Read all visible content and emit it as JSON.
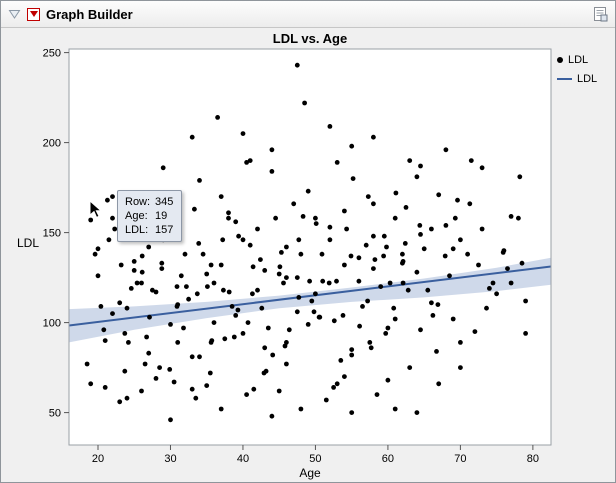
{
  "window": {
    "title": "Graph Builder"
  },
  "tooltip": {
    "rows": [
      {
        "label": "Row:",
        "value": "345"
      },
      {
        "label": "Age:",
        "value": "19"
      },
      {
        "label": "LDL:",
        "value": "157"
      }
    ]
  },
  "chart_data": {
    "type": "scatter",
    "title": "LDL vs. Age",
    "xlabel": "Age",
    "ylabel": "LDL",
    "xlim": [
      16,
      82.5
    ],
    "ylim": [
      32,
      252
    ],
    "x_ticks": [
      20,
      30,
      40,
      50,
      60,
      70,
      80
    ],
    "y_ticks": [
      50,
      100,
      150,
      200,
      250
    ],
    "grid": false,
    "legend_position": "right",
    "legend": [
      {
        "label": "LDL",
        "marker": "point",
        "color": "#000000"
      },
      {
        "label": "LDL",
        "marker": "line",
        "color": "#3a5f9e"
      }
    ],
    "series": [
      {
        "name": "LDL",
        "type": "scatter",
        "color": "#000000",
        "points": [
          [
            19,
            66
          ],
          [
            21,
            90
          ],
          [
            23,
            111
          ],
          [
            25,
            129
          ],
          [
            27,
            83
          ],
          [
            29,
            146
          ],
          [
            31,
            110
          ],
          [
            33,
            63
          ],
          [
            35,
            127
          ],
          [
            37,
            170
          ],
          [
            39,
            104
          ],
          [
            41,
            143
          ],
          [
            43,
            86
          ],
          [
            45,
            127
          ],
          [
            47,
            166
          ],
          [
            49,
            99
          ],
          [
            51,
            123
          ],
          [
            53,
            189
          ],
          [
            55,
            82
          ],
          [
            57,
            143
          ],
          [
            59,
            120
          ],
          [
            61,
            158
          ],
          [
            63,
            75
          ],
          [
            65,
            141
          ],
          [
            67,
            171
          ],
          [
            69,
            102
          ],
          [
            71,
            138
          ],
          [
            73,
            186
          ],
          [
            75,
            116
          ],
          [
            77,
            159
          ],
          [
            79,
            94
          ],
          [
            20,
            141
          ],
          [
            22,
            105
          ],
          [
            24,
            58
          ],
          [
            26,
            122
          ],
          [
            28,
            165
          ],
          [
            30,
            99
          ],
          [
            32,
            138
          ],
          [
            34,
            81
          ],
          [
            36,
            122
          ],
          [
            38,
            161
          ],
          [
            40,
            94
          ],
          [
            42,
            118
          ],
          [
            44,
            184
          ],
          [
            46,
            77
          ],
          [
            48,
            138
          ],
          [
            50,
            116
          ],
          [
            52,
            153
          ],
          [
            54,
            70
          ],
          [
            56,
            136
          ],
          [
            58,
            166
          ],
          [
            60,
            97
          ],
          [
            62,
            133
          ],
          [
            64,
            181
          ],
          [
            66,
            111
          ],
          [
            68,
            154
          ],
          [
            70,
            89
          ],
          [
            72,
            95
          ],
          [
            74,
            119
          ],
          [
            76,
            140
          ],
          [
            78,
            158
          ],
          [
            25,
            134
          ],
          [
            26.5,
            77
          ],
          [
            28,
            117
          ],
          [
            29.5,
            156
          ],
          [
            31,
            89
          ],
          [
            32.5,
            113
          ],
          [
            34,
            179
          ],
          [
            35.5,
            72
          ],
          [
            37,
            132
          ],
          [
            38.5,
            109
          ],
          [
            40,
            146
          ],
          [
            41.5,
            63
          ],
          [
            43,
            129
          ],
          [
            44.5,
            158
          ],
          [
            46,
            89
          ],
          [
            47.5,
            125
          ],
          [
            49,
            173
          ],
          [
            50.5,
            103
          ],
          [
            52,
            146
          ],
          [
            53.5,
            79
          ],
          [
            55,
            85
          ],
          [
            56.5,
            109
          ],
          [
            58,
            130
          ],
          [
            59.5,
            148
          ],
          [
            61,
            102
          ],
          [
            62.5,
            164
          ],
          [
            64,
            128
          ],
          [
            22,
            158
          ],
          [
            23.7,
            73
          ],
          [
            25.4,
            122
          ],
          [
            27.1,
            103
          ],
          [
            28.8,
            133
          ],
          [
            30.5,
            67
          ],
          [
            32.2,
            120
          ],
          [
            33.9,
            144
          ],
          [
            35.6,
            89
          ],
          [
            37.3,
            118
          ],
          [
            39,
            156
          ],
          [
            40.7,
            100
          ],
          [
            42.4,
            135
          ],
          [
            44.1,
            82
          ],
          [
            45.8,
            87
          ],
          [
            47.5,
            106
          ],
          [
            49.2,
            123
          ],
          [
            50.9,
            138
          ],
          [
            52.6,
            101
          ],
          [
            54.3,
            152
          ],
          [
            56,
            123
          ],
          [
            57.7,
            86
          ],
          [
            59.4,
            137
          ],
          [
            61.1,
            172
          ],
          [
            62.8,
            118
          ],
          [
            64.5,
            149
          ],
          [
            66.2,
            104
          ],
          [
            67.9,
            137
          ],
          [
            69.6,
            168
          ],
          [
            21.3,
            168
          ],
          [
            23.7,
            94
          ],
          [
            26.1,
            137
          ],
          [
            28.5,
            75
          ],
          [
            30.9,
            120
          ],
          [
            33.3,
            163
          ],
          [
            35.7,
            90
          ],
          [
            38.1,
            117
          ],
          [
            40.5,
            189
          ],
          [
            42.9,
            72
          ],
          [
            45.3,
            139
          ],
          [
            47.7,
            114
          ],
          [
            50.1,
            155
          ],
          [
            52.5,
            64
          ],
          [
            54.9,
            137
          ],
          [
            57.3,
            170
          ],
          [
            59.7,
            94
          ],
          [
            62.1,
            134
          ],
          [
            64.5,
            187
          ],
          [
            66.9,
            110
          ],
          [
            69.3,
            158
          ],
          [
            24.6,
            119
          ],
          [
            26.7,
            92
          ],
          [
            28.8,
            130
          ],
          [
            30.9,
            109
          ],
          [
            33,
            81
          ],
          [
            35.1,
            120
          ],
          [
            37.2,
            146
          ],
          [
            39.3,
            107
          ],
          [
            41.4,
            131
          ],
          [
            43.5,
            97
          ],
          [
            45.6,
            122
          ],
          [
            47.7,
            146
          ],
          [
            49.8,
            106
          ],
          [
            51.9,
            122
          ],
          [
            54,
            162
          ],
          [
            56.1,
            98
          ],
          [
            58.2,
            135
          ],
          [
            60.3,
            122
          ],
          [
            62.4,
            144
          ],
          [
            64.5,
            96
          ],
          [
            18.5,
            77
          ],
          [
            20.4,
            109
          ],
          [
            22.3,
            152
          ],
          [
            24.2,
            89
          ],
          [
            26.1,
            128
          ],
          [
            28,
            69
          ],
          [
            29.9,
            74
          ],
          [
            31.8,
            97
          ],
          [
            33.7,
            116
          ],
          [
            35.6,
            132
          ],
          [
            37.5,
            91
          ],
          [
            39.4,
            148
          ],
          [
            41.3,
            116
          ],
          [
            43.2,
            73
          ],
          [
            45.1,
            131
          ],
          [
            46,
            125
          ],
          [
            48.3,
            159
          ],
          [
            50.6,
            103
          ],
          [
            52.9,
            123
          ],
          [
            55.2,
            180
          ],
          [
            57.5,
            89
          ],
          [
            59.8,
            142
          ],
          [
            62.1,
            122
          ],
          [
            64.4,
            154
          ],
          [
            66.7,
            84
          ],
          [
            69,
            141
          ],
          [
            71.3,
            166
          ],
          [
            73.6,
            108
          ],
          [
            75.9,
            139
          ],
          [
            78.2,
            181
          ],
          [
            33,
            203
          ],
          [
            36.5,
            214
          ],
          [
            40,
            205
          ],
          [
            44,
            196
          ],
          [
            47.5,
            243
          ],
          [
            48.5,
            222
          ],
          [
            52,
            209
          ],
          [
            55,
            198
          ],
          [
            58,
            203
          ],
          [
            41,
            190
          ],
          [
            63,
            190
          ],
          [
            68,
            196
          ],
          [
            71.5,
            190
          ],
          [
            29,
            186
          ],
          [
            25,
            172
          ],
          [
            22,
            170
          ],
          [
            23,
            56
          ],
          [
            26,
            62
          ],
          [
            30,
            46
          ],
          [
            33.5,
            58
          ],
          [
            37,
            52
          ],
          [
            40.5,
            60
          ],
          [
            44,
            48
          ],
          [
            48,
            52
          ],
          [
            51.5,
            57
          ],
          [
            55,
            50
          ],
          [
            58.5,
            60
          ],
          [
            61,
            52
          ],
          [
            64,
            50
          ],
          [
            67,
            66
          ],
          [
            70,
            75
          ],
          [
            21,
            64
          ],
          [
            35,
            65
          ],
          [
            45,
            62
          ],
          [
            53,
            66
          ],
          [
            60,
            68
          ],
          [
            20,
            126
          ],
          [
            20.8,
            96
          ],
          [
            24,
            108
          ],
          [
            27.5,
            118
          ],
          [
            31.5,
            126
          ],
          [
            36,
            100
          ],
          [
            38.8,
            92
          ],
          [
            42.6,
            108
          ],
          [
            46.4,
            96
          ],
          [
            49.5,
            112
          ],
          [
            53.8,
            104
          ],
          [
            57.2,
            112
          ],
          [
            60.8,
            108
          ],
          [
            65.5,
            118
          ],
          [
            68.5,
            126
          ],
          [
            72.5,
            132
          ],
          [
            74.5,
            122
          ],
          [
            76.5,
            130
          ],
          [
            19,
            157
          ],
          [
            19.6,
            138
          ],
          [
            21.5,
            146
          ],
          [
            23.2,
            132
          ],
          [
            27,
            142
          ],
          [
            31,
            152
          ],
          [
            34.5,
            138
          ],
          [
            38,
            158
          ],
          [
            42,
            152
          ],
          [
            46,
            142
          ],
          [
            50,
            158
          ],
          [
            54,
            132
          ],
          [
            58,
            148
          ],
          [
            62,
            138
          ],
          [
            66,
            152
          ],
          [
            70,
            146
          ],
          [
            73,
            152
          ],
          [
            77,
            122
          ],
          [
            79,
            112
          ],
          [
            78.5,
            133
          ]
        ]
      },
      {
        "name": "LDL",
        "type": "fit-line",
        "color": "#3a5f9e",
        "band_color": "#9fb4d6",
        "line": {
          "x": [
            16,
            82.5
          ],
          "y": [
            98.4,
            131.2
          ]
        },
        "band": {
          "x": [
            16,
            25,
            35,
            45,
            55,
            65,
            75,
            82.5
          ],
          "upper": [
            107.5,
            109,
            111.5,
            115,
            119.5,
            124.5,
            130.5,
            136
          ],
          "lower": [
            89,
            96,
            102.5,
            108,
            111.5,
            114,
            117.5,
            121
          ]
        }
      }
    ]
  }
}
